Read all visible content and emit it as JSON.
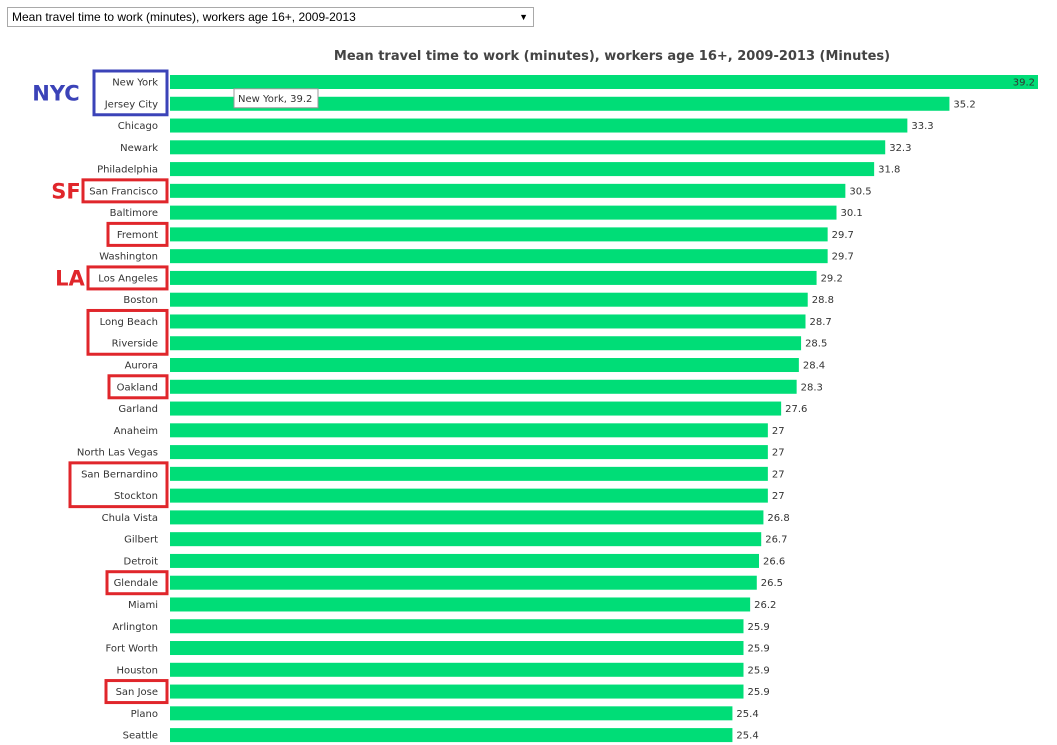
{
  "selector": {
    "value": "Mean travel time to work (minutes), workers age 16+, 2009-2013",
    "arrow": "▼"
  },
  "colors": {
    "bar": "#00dd77",
    "nyc_box": "#3b43b8",
    "ca_box": "#e0262b"
  },
  "chart_data": {
    "type": "bar",
    "orientation": "horizontal",
    "title": "Mean travel time to work (minutes), workers age 16+, 2009-2013 (Minutes)",
    "xlim": [
      0,
      39.2
    ],
    "categories": [
      "New York",
      "Jersey City",
      "Chicago",
      "Newark",
      "Philadelphia",
      "San Francisco",
      "Baltimore",
      "Fremont",
      "Washington",
      "Los Angeles",
      "Boston",
      "Long Beach",
      "Riverside",
      "Aurora",
      "Oakland",
      "Garland",
      "Anaheim",
      "North Las Vegas",
      "San Bernardino",
      "Stockton",
      "Chula Vista",
      "Gilbert",
      "Detroit",
      "Glendale",
      "Miami",
      "Arlington",
      "Fort Worth",
      "Houston",
      "San Jose",
      "Plano",
      "Seattle"
    ],
    "values": [
      39.2,
      35.2,
      33.3,
      32.3,
      31.8,
      30.5,
      30.1,
      29.7,
      29.7,
      29.2,
      28.8,
      28.7,
      28.5,
      28.4,
      28.3,
      27.6,
      27,
      27,
      27,
      27,
      26.8,
      26.7,
      26.6,
      26.5,
      26.2,
      25.9,
      25.9,
      25.9,
      25.9,
      25.4,
      25.4
    ],
    "tooltip": "New York, 39.2"
  },
  "annotations": {
    "nyc": "NYC",
    "sf": "SF",
    "la": "LA"
  }
}
